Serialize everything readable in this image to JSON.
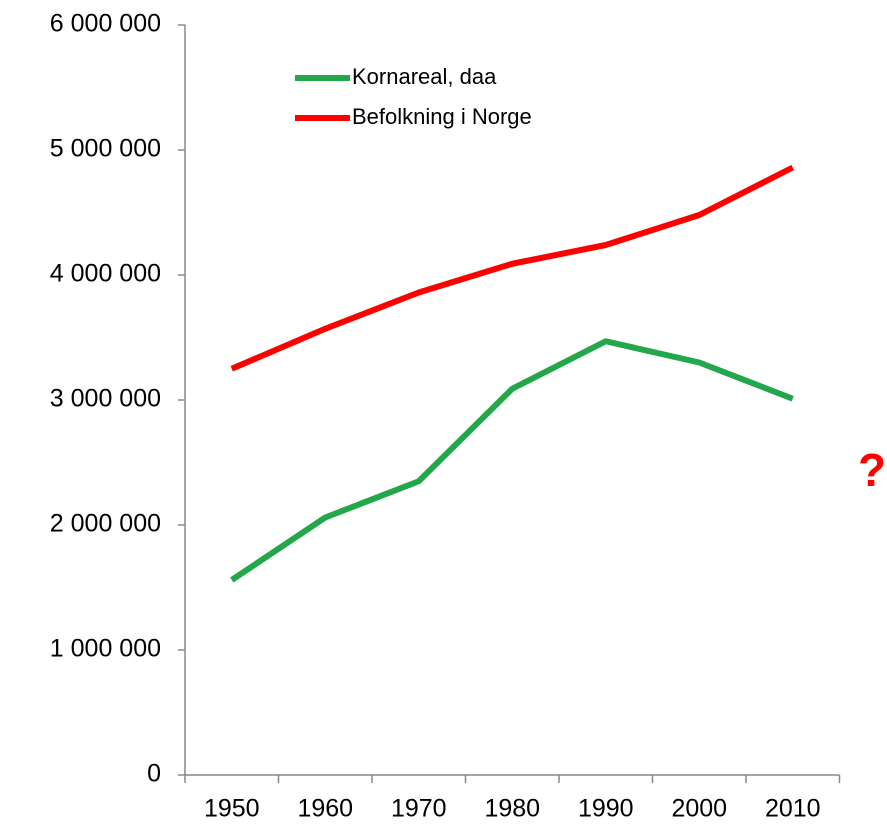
{
  "chart_data": {
    "type": "line",
    "categories": [
      "1950",
      "1960",
      "1970",
      "1980",
      "1990",
      "2000",
      "2010"
    ],
    "series": [
      {
        "name": "Kornareal, daa",
        "color": "#22a84a",
        "values": [
          1560000,
          2060000,
          2350000,
          3090000,
          3470000,
          3300000,
          3010000
        ]
      },
      {
        "name": "Befolkning i Norge",
        "color": "#ff0000",
        "values": [
          3250000,
          3570000,
          3860000,
          4090000,
          4240000,
          4480000,
          4860000
        ]
      }
    ],
    "ylim": [
      0,
      6000000
    ],
    "yticks": [
      0,
      {
        "value": 1000000,
        "label": "1 000 000"
      },
      {
        "value": 2000000,
        "label": "2 000 000"
      },
      {
        "value": 3000000,
        "label": "3 000 000"
      },
      {
        "value": 4000000,
        "label": "4 000 000"
      },
      {
        "value": 5000000,
        "label": "5 000 000"
      },
      {
        "value": 6000000,
        "label": "6 000 000"
      }
    ],
    "annotation": "?",
    "annotation_color": "#ff0000",
    "legend": "top"
  }
}
